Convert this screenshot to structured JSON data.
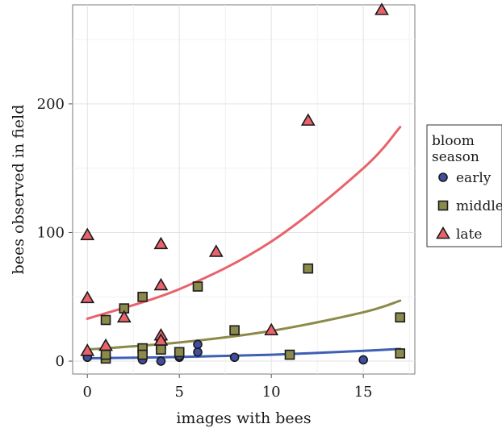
{
  "chart_data": {
    "type": "scatter",
    "title": "",
    "xlabel": "images with bees",
    "ylabel": "bees observed in field",
    "xlim": [
      -0.8,
      17.8
    ],
    "ylim": [
      -10,
      277
    ],
    "x_ticks": [
      0,
      5,
      10,
      15
    ],
    "y_ticks": [
      0,
      100,
      200
    ],
    "grid": true,
    "legend": {
      "title_lines": [
        "bloom",
        "season"
      ],
      "placement": "right"
    },
    "series": [
      {
        "name": "early",
        "marker": "circle",
        "fill": "#3f4ea0",
        "line_color": "#3f5fb5",
        "points": [
          [
            0,
            3
          ],
          [
            1,
            2
          ],
          [
            1,
            5
          ],
          [
            3,
            2
          ],
          [
            3,
            1
          ],
          [
            4,
            0
          ],
          [
            5,
            3
          ],
          [
            5,
            4
          ],
          [
            6,
            7
          ],
          [
            6,
            13
          ],
          [
            8,
            3
          ],
          [
            15,
            1
          ]
        ],
        "fit": [
          [
            0,
            2.2
          ],
          [
            5,
            3.2
          ],
          [
            10,
            5.0
          ],
          [
            15,
            8.0
          ],
          [
            17,
            9.5
          ]
        ]
      },
      {
        "name": "middle",
        "marker": "square",
        "fill": "#8b8a4c",
        "line_color": "#8c8a48",
        "points": [
          [
            1,
            32
          ],
          [
            1,
            2
          ],
          [
            1,
            5
          ],
          [
            2,
            41
          ],
          [
            3,
            50
          ],
          [
            3,
            10
          ],
          [
            3,
            5
          ],
          [
            4,
            13
          ],
          [
            4,
            9
          ],
          [
            5,
            7
          ],
          [
            6,
            58
          ],
          [
            8,
            24
          ],
          [
            11,
            5
          ],
          [
            12,
            72
          ],
          [
            17,
            34
          ],
          [
            17,
            6
          ]
        ],
        "fit": [
          [
            0,
            9
          ],
          [
            5,
            14.5
          ],
          [
            10,
            23.5
          ],
          [
            15,
            38
          ],
          [
            17,
            47
          ]
        ]
      },
      {
        "name": "late",
        "marker": "triangle",
        "fill": "#e8636b",
        "line_color": "#e8636b",
        "points": [
          [
            0,
            98
          ],
          [
            0,
            49
          ],
          [
            0,
            8
          ],
          [
            1,
            12
          ],
          [
            2,
            34
          ],
          [
            4,
            91
          ],
          [
            4,
            59
          ],
          [
            4,
            20
          ],
          [
            4,
            16
          ],
          [
            7,
            85
          ],
          [
            10,
            24
          ],
          [
            12,
            187
          ],
          [
            16,
            273
          ]
        ],
        "fit": [
          [
            0,
            33
          ],
          [
            5,
            56
          ],
          [
            10,
            93
          ],
          [
            15,
            150
          ],
          [
            17,
            182
          ]
        ]
      }
    ]
  }
}
